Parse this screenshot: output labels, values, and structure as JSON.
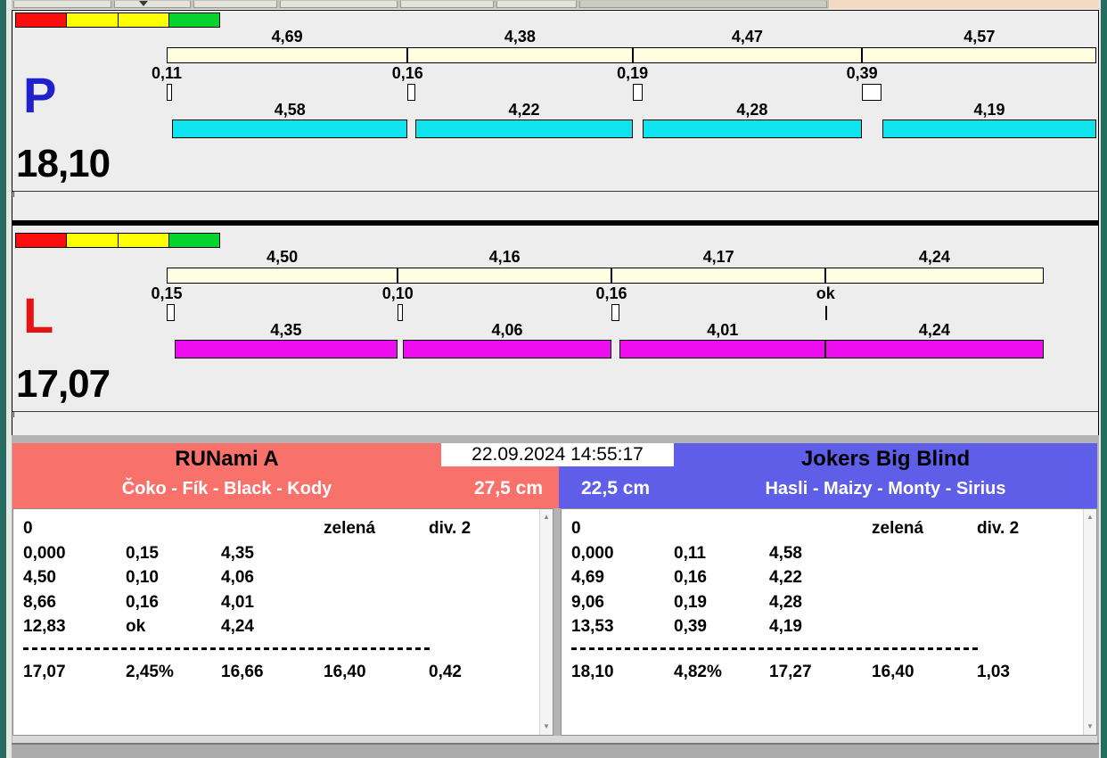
{
  "datetime": "22.09.2024 14:55:17",
  "traffic_light": {
    "colors": [
      "#FB0D0D",
      "#FFFF00",
      "#FFFF00",
      "#06D42E"
    ]
  },
  "lanes": [
    {
      "letter": "P",
      "letter_color": "#2121CC",
      "total": "18,10",
      "bar_color": "#0FE4EE",
      "legs": [
        {
          "split": 4.69,
          "split_label": "4,69",
          "exchange": 0.11,
          "exchange_label": "0,11",
          "dog_label": "4,58"
        },
        {
          "split": 4.38,
          "split_label": "4,38",
          "exchange": 0.16,
          "exchange_label": "0,16",
          "dog_label": "4,22"
        },
        {
          "split": 4.47,
          "split_label": "4,47",
          "exchange": 0.19,
          "exchange_label": "0,19",
          "dog_label": "4,28"
        },
        {
          "split": 4.57,
          "split_label": "4,57",
          "exchange": 0.39,
          "exchange_label": "0,39",
          "dog_label": "4,19"
        }
      ]
    },
    {
      "letter": "L",
      "letter_color": "#E41414",
      "total": "17,07",
      "bar_color": "#ED0CED",
      "legs": [
        {
          "split": 4.5,
          "split_label": "4,50",
          "exchange": 0.15,
          "exchange_label": "0,15",
          "dog_label": "4,35"
        },
        {
          "split": 4.16,
          "split_label": "4,16",
          "exchange": 0.1,
          "exchange_label": "0,10",
          "dog_label": "4,06"
        },
        {
          "split": 4.17,
          "split_label": "4,17",
          "exchange": 0.16,
          "exchange_label": "0,16",
          "dog_label": "4,01"
        },
        {
          "split": 4.24,
          "split_label": "4,24",
          "exchange": 0,
          "exchange_label": "ok",
          "dog_label": "4,24"
        }
      ]
    }
  ],
  "teams": [
    {
      "name": "RUNami A",
      "dogs": "Čoko - Fík - Black - Kody",
      "jump_height": "27,5 cm",
      "header_color": "#F8716B",
      "rows": [
        [
          "0",
          "",
          "",
          "zelená",
          "div. 2"
        ],
        [
          "0,000",
          "0,15",
          "4,35",
          "",
          ""
        ],
        [
          "4,50",
          "0,10",
          "4,06",
          "",
          ""
        ],
        [
          "8,66",
          "0,16",
          "4,01",
          "",
          ""
        ],
        [
          "12,83",
          "ok",
          "4,24",
          "",
          ""
        ]
      ],
      "totals": [
        "17,07",
        "2,45%",
        "16,66",
        "16,40",
        "0,42"
      ]
    },
    {
      "name": "Jokers Big Blind",
      "dogs": "Hasli - Maizy - Monty - Sirius",
      "jump_height": "22,5 cm",
      "header_color": "#5E5EE9",
      "rows": [
        [
          "0",
          "",
          "",
          "zelená",
          "div. 2"
        ],
        [
          "0,000",
          "0,11",
          "4,58",
          "",
          ""
        ],
        [
          "4,69",
          "0,16",
          "4,22",
          "",
          ""
        ],
        [
          "9,06",
          "0,19",
          "4,28",
          "",
          ""
        ],
        [
          "13,53",
          "0,39",
          "4,19",
          "",
          ""
        ]
      ],
      "totals": [
        "18,10",
        "4,82%",
        "17,27",
        "16,40",
        "1,03"
      ]
    }
  ]
}
